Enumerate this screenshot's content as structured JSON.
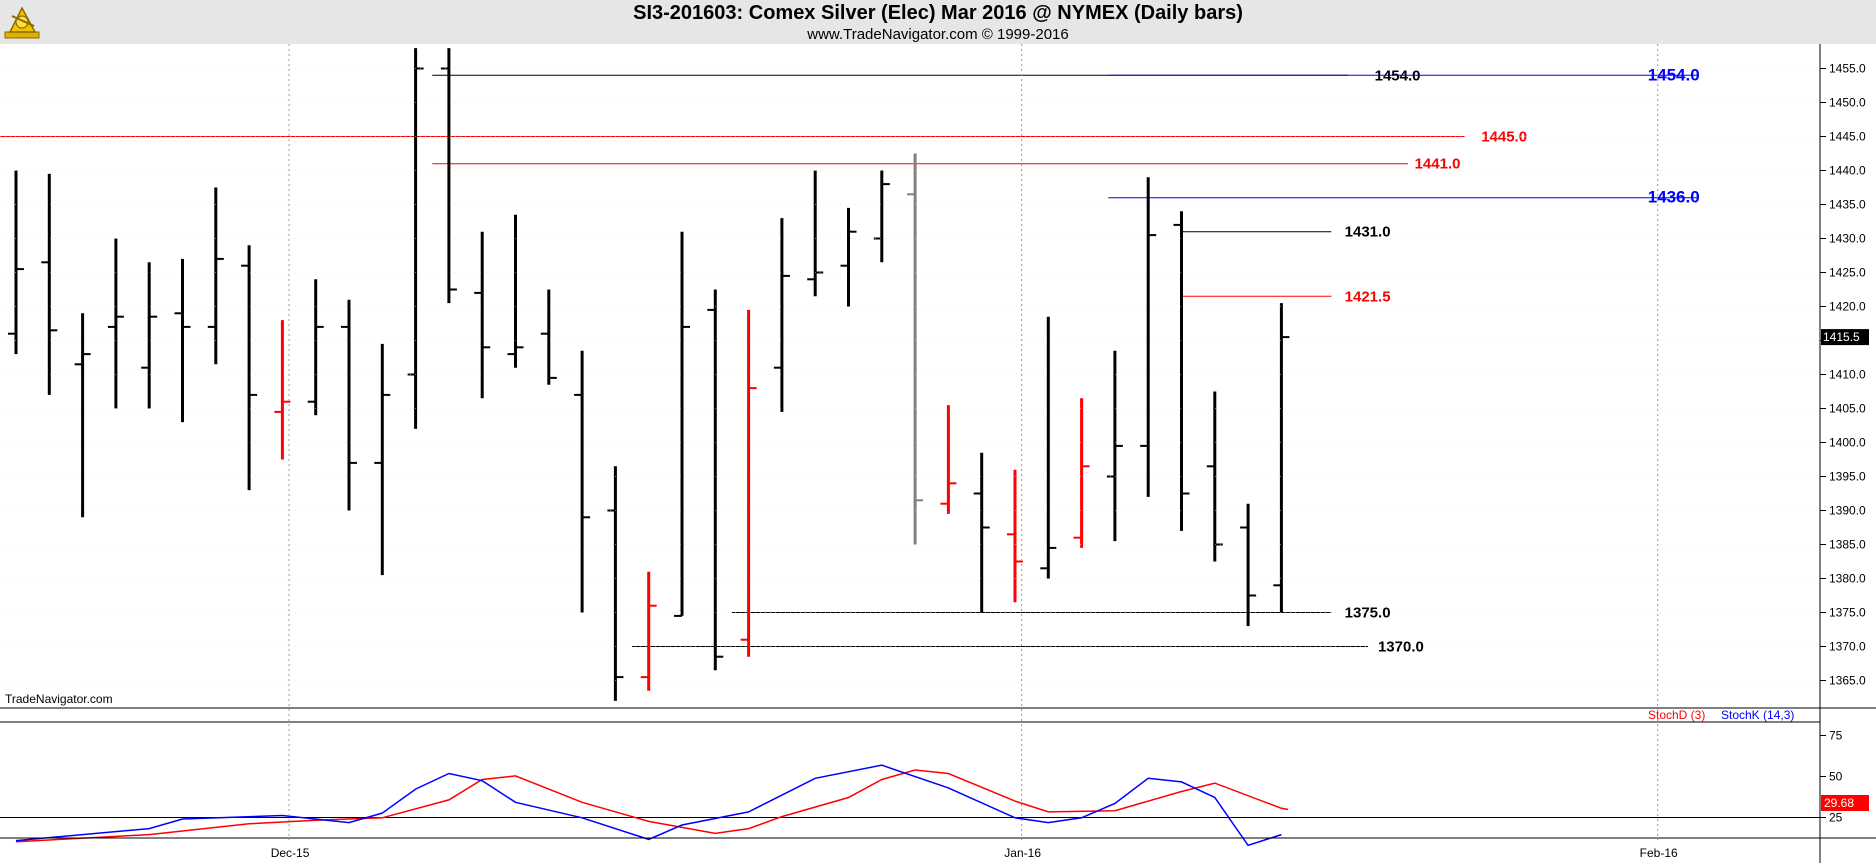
{
  "header": {
    "title": "SI3-201603:  Comex Silver (Elec) Mar 2016 @ NYMEX  (Daily bars)",
    "subtitle": "www.TradeNavigator.com © 1999-2016"
  },
  "watermark": "TradeNavigator.com",
  "colors": {
    "up": "#000000",
    "down": "#ff0000",
    "neutral": "#808080",
    "blue": "#0000ff",
    "stochD": "#ff0000",
    "stochK": "#0000ff"
  },
  "chart_data": [
    {
      "type": "ohlc",
      "title": "SI3-201603:  Comex Silver (Elec) Mar 2016 @ NYMEX  (Daily bars)",
      "ylim": [
        1361,
        1458
      ],
      "yticks": [
        1365,
        1370,
        1375,
        1380,
        1385,
        1390,
        1395,
        1400,
        1405,
        1410,
        1415,
        1420,
        1425,
        1430,
        1435,
        1440,
        1445,
        1450,
        1455
      ],
      "date_labels": [
        {
          "label": "Dec-15",
          "bar_index": 8.2
        },
        {
          "label": "Jan-16",
          "bar_index": 30.2
        },
        {
          "label": "Feb-16",
          "bar_index": 49.3
        }
      ],
      "last_price_label": "1415.5",
      "bars": [
        {
          "o": 1416,
          "h": 1440,
          "l": 1413,
          "c": 1425.5,
          "color": "up"
        },
        {
          "o": 1426.5,
          "h": 1439.5,
          "l": 1407,
          "c": 1416.5,
          "color": "up"
        },
        {
          "o": 1411.5,
          "h": 1419,
          "l": 1389,
          "c": 1413,
          "color": "up"
        },
        {
          "o": 1417,
          "h": 1430,
          "l": 1405,
          "c": 1418.5,
          "color": "up"
        },
        {
          "o": 1411,
          "h": 1426.5,
          "l": 1405,
          "c": 1418.5,
          "color": "up"
        },
        {
          "o": 1419,
          "h": 1427,
          "l": 1403,
          "c": 1417,
          "color": "up"
        },
        {
          "o": 1417,
          "h": 1437.5,
          "l": 1411.5,
          "c": 1427,
          "color": "up"
        },
        {
          "o": 1426,
          "h": 1429,
          "l": 1393,
          "c": 1407,
          "color": "up"
        },
        {
          "o": 1404.5,
          "h": 1418,
          "l": 1397.5,
          "c": 1406,
          "color": "down"
        },
        {
          "o": 1406,
          "h": 1424,
          "l": 1404,
          "c": 1417,
          "color": "up"
        },
        {
          "o": 1417,
          "h": 1421,
          "l": 1390,
          "c": 1397,
          "color": "up"
        },
        {
          "o": 1397,
          "h": 1414.5,
          "l": 1380.5,
          "c": 1407,
          "color": "up"
        },
        {
          "o": 1410,
          "h": 1458,
          "l": 1402,
          "c": 1455,
          "color": "up"
        },
        {
          "o": 1455,
          "h": 1458,
          "l": 1420.5,
          "c": 1422.5,
          "color": "up"
        },
        {
          "o": 1422,
          "h": 1431,
          "l": 1406.5,
          "c": 1414,
          "color": "up"
        },
        {
          "o": 1413,
          "h": 1433.5,
          "l": 1411,
          "c": 1414,
          "color": "up"
        },
        {
          "o": 1416,
          "h": 1422.5,
          "l": 1408.5,
          "c": 1409.5,
          "color": "up"
        },
        {
          "o": 1407,
          "h": 1413.5,
          "l": 1375,
          "c": 1389,
          "color": "up"
        },
        {
          "o": 1390,
          "h": 1396.5,
          "l": 1362,
          "c": 1365.5,
          "color": "up"
        },
        {
          "o": 1365.5,
          "h": 1381,
          "l": 1363.5,
          "c": 1376,
          "color": "down"
        },
        {
          "o": 1374.5,
          "h": 1431,
          "l": 1374.5,
          "c": 1417,
          "color": "up"
        },
        {
          "o": 1419.5,
          "h": 1422.5,
          "l": 1366.5,
          "c": 1368.5,
          "color": "up"
        },
        {
          "o": 1371,
          "h": 1419.5,
          "l": 1368.5,
          "c": 1408,
          "color": "down"
        },
        {
          "o": 1411,
          "h": 1433,
          "l": 1404.5,
          "c": 1424.5,
          "color": "up"
        },
        {
          "o": 1424,
          "h": 1440,
          "l": 1421.5,
          "c": 1425,
          "color": "up"
        },
        {
          "o": 1426,
          "h": 1434.5,
          "l": 1420,
          "c": 1431,
          "color": "up"
        },
        {
          "o": 1430,
          "h": 1440,
          "l": 1426.5,
          "c": 1438,
          "color": "up"
        },
        {
          "o": 1436.5,
          "h": 1442.5,
          "l": 1385,
          "c": 1391.5,
          "color": "neutral"
        },
        {
          "o": 1391,
          "h": 1405.5,
          "l": 1389.5,
          "c": 1394,
          "color": "down"
        },
        {
          "o": 1392.5,
          "h": 1398.5,
          "l": 1375,
          "c": 1387.5,
          "color": "up"
        },
        {
          "o": 1386.5,
          "h": 1396,
          "l": 1376.5,
          "c": 1382.5,
          "color": "down"
        },
        {
          "o": 1381.5,
          "h": 1418.5,
          "l": 1380,
          "c": 1384.5,
          "color": "up"
        },
        {
          "o": 1386,
          "h": 1406.5,
          "l": 1384.5,
          "c": 1396.5,
          "color": "down"
        },
        {
          "o": 1395,
          "h": 1413.5,
          "l": 1385.5,
          "c": 1399.5,
          "color": "up"
        },
        {
          "o": 1399.5,
          "h": 1439,
          "l": 1392,
          "c": 1430.5,
          "color": "up"
        },
        {
          "o": 1432,
          "h": 1434,
          "l": 1387,
          "c": 1392.5,
          "color": "up"
        },
        {
          "o": 1396.5,
          "h": 1407.5,
          "l": 1382.5,
          "c": 1385,
          "color": "up"
        },
        {
          "o": 1387.5,
          "h": 1391,
          "l": 1373,
          "c": 1377.5,
          "color": "up"
        },
        {
          "o": 1379,
          "h": 1420.5,
          "l": 1375,
          "c": 1415.5,
          "color": "up"
        }
      ],
      "levels": [
        {
          "label": "1454.0",
          "value": 1454.0,
          "color": "black",
          "from": 12.5,
          "to": 40,
          "label_at": 40.8,
          "size": 15
        },
        {
          "label": "1454.0",
          "value": 1454.0,
          "color": "blue",
          "from": 32.8,
          "to": 50.5,
          "label_at": 49.0,
          "size": 17
        },
        {
          "label": "1445.0",
          "value": 1445.0,
          "color": "red",
          "from": -1,
          "to": 43.5,
          "label_at": 44.0,
          "size": 15
        },
        {
          "label": "1441.0",
          "value": 1441.0,
          "color": "red",
          "from": 12.5,
          "to": 41.8,
          "label_at": 42.0,
          "size": 15
        },
        {
          "label": "1436.0",
          "value": 1436.0,
          "color": "blue",
          "from": 32.8,
          "to": 50.5,
          "label_at": 49.0,
          "size": 17
        },
        {
          "label": "1431.0",
          "value": 1431.0,
          "color": "black",
          "from": 35,
          "to": 39.5,
          "label_at": 39.9,
          "size": 15
        },
        {
          "label": "1421.5",
          "value": 1421.5,
          "color": "red",
          "from": 35,
          "to": 39.5,
          "label_at": 39.9,
          "size": 15
        },
        {
          "label": "1375.0",
          "value": 1375.0,
          "color": "black",
          "from": 21.5,
          "to": 39.5,
          "label_at": 39.9,
          "size": 15
        },
        {
          "label": "1370.0",
          "value": 1370.0,
          "color": "black",
          "from": 18.5,
          "to": 40.6,
          "label_at": 40.9,
          "size": 15
        }
      ]
    },
    {
      "type": "line",
      "legend": [
        "StochD (3)",
        "StochK (14,3)"
      ],
      "yticks": [
        25,
        50,
        75
      ],
      "ylim": [
        0,
        85
      ],
      "last_value_label": "29.68",
      "series": [
        {
          "name": "StochD (3)",
          "color": "red",
          "points": [
            [
              0,
              3
            ],
            [
              4,
              9
            ],
            [
              7,
              18
            ],
            [
              9,
              21
            ],
            [
              11,
              23
            ],
            [
              13,
              38
            ],
            [
              14,
              55
            ],
            [
              15,
              58
            ],
            [
              17,
              36
            ],
            [
              19,
              20
            ],
            [
              21,
              10
            ],
            [
              22,
              14
            ],
            [
              23,
              24
            ],
            [
              25,
              40
            ],
            [
              26,
              55
            ],
            [
              27,
              63
            ],
            [
              28,
              60
            ],
            [
              30,
              37
            ],
            [
              31,
              28
            ],
            [
              33,
              29
            ],
            [
              35,
              45
            ],
            [
              36,
              52
            ],
            [
              38,
              31
            ],
            [
              38.2,
              30
            ]
          ]
        },
        {
          "name": "StochK (14,3)",
          "color": "blue",
          "points": [
            [
              0,
              4
            ],
            [
              4,
              14
            ],
            [
              5,
              22
            ],
            [
              8,
              25
            ],
            [
              10,
              19
            ],
            [
              11,
              27
            ],
            [
              12,
              47
            ],
            [
              13,
              60
            ],
            [
              14,
              54
            ],
            [
              15,
              36
            ],
            [
              17,
              23
            ],
            [
              19,
              5
            ],
            [
              20,
              17
            ],
            [
              22,
              28
            ],
            [
              24,
              56
            ],
            [
              26,
              67
            ],
            [
              28,
              48
            ],
            [
              30,
              23
            ],
            [
              31,
              19
            ],
            [
              32,
              23
            ],
            [
              33,
              35
            ],
            [
              34,
              56
            ],
            [
              35,
              53
            ],
            [
              36,
              40
            ],
            [
              37,
              0
            ],
            [
              38,
              9
            ]
          ]
        }
      ]
    }
  ]
}
